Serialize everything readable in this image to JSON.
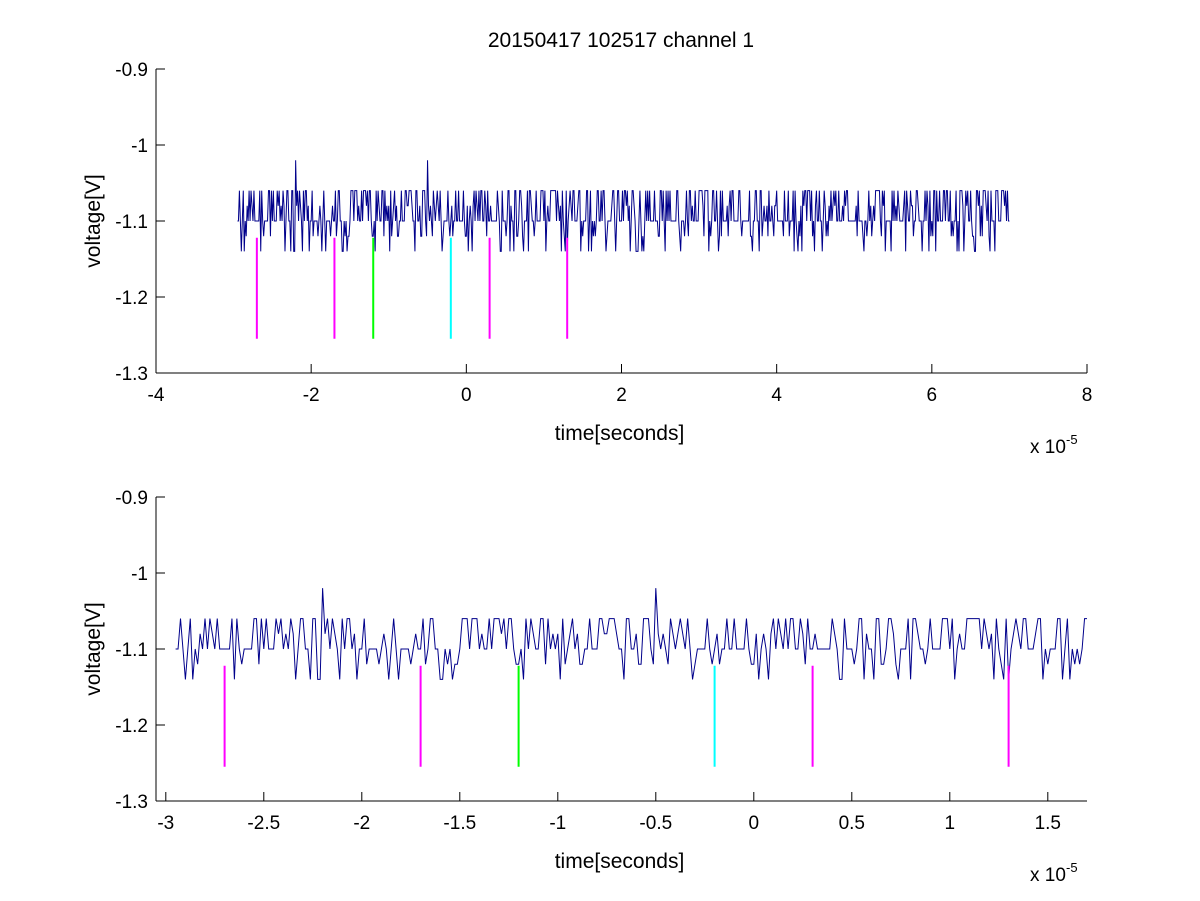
{
  "figure": {
    "title": "20150417 102517 channel 1"
  },
  "chart_data": [
    {
      "type": "line",
      "xlabel": "time[seconds]",
      "ylabel": "voltage[V]",
      "x_multiplier": {
        "base": "x 10",
        "exponent": "-5"
      },
      "xlim": [
        -4,
        8
      ],
      "ylim": [
        -1.3,
        -0.9
      ],
      "xticks": [
        -4,
        -2,
        0,
        2,
        4,
        6,
        8
      ],
      "xtick_labels": [
        "-4",
        "-2",
        "0",
        "2",
        "4",
        "6",
        "8"
      ],
      "yticks": [
        -0.9,
        -1.0,
        -1.1,
        -1.2,
        -1.3
      ],
      "ytick_labels": [
        "-0.9",
        "-1",
        "-1.1",
        "-1.2",
        "-1.3"
      ],
      "grid": false,
      "signal": {
        "color": "#00008B",
        "x_start": -2.95,
        "x_end": 7.0,
        "levels": [
          -1.06,
          -1.08,
          -1.1,
          -1.12,
          -1.14
        ],
        "spikes": [
          {
            "x": -2.2,
            "y": -1.02
          },
          {
            "x": -0.5,
            "y": -1.02
          }
        ]
      },
      "markers": [
        {
          "x": -2.7,
          "color": "#FF00FF"
        },
        {
          "x": -1.7,
          "color": "#FF00FF"
        },
        {
          "x": -1.2,
          "color": "#00FF00"
        },
        {
          "x": -0.2,
          "color": "#00FFFF"
        },
        {
          "x": 0.3,
          "color": "#FF00FF"
        },
        {
          "x": 1.3,
          "color": "#FF00FF"
        }
      ],
      "marker_y_range": [
        -1.255,
        -1.122
      ]
    },
    {
      "type": "line",
      "xlabel": "time[seconds]",
      "ylabel": "voltage[V]",
      "x_multiplier": {
        "base": "x 10",
        "exponent": "-5"
      },
      "xlim": [
        -3.05,
        1.7
      ],
      "ylim": [
        -1.3,
        -0.9
      ],
      "xticks": [
        -3,
        -2.5,
        -2,
        -1.5,
        -1,
        -0.5,
        0,
        0.5,
        1,
        1.5
      ],
      "xtick_labels": [
        "-3",
        "-2.5",
        "-2",
        "-1.5",
        "-1",
        "-0.5",
        "0",
        "0.5",
        "1",
        "1.5"
      ],
      "yticks": [
        -0.9,
        -1.0,
        -1.1,
        -1.2,
        -1.3
      ],
      "ytick_labels": [
        "-0.9",
        "-1",
        "-1.1",
        "-1.2",
        "-1.3"
      ],
      "grid": false,
      "signal": {
        "color": "#00008B",
        "x_start": -2.95,
        "x_end": 1.7,
        "levels": [
          -1.06,
          -1.08,
          -1.1,
          -1.12,
          -1.14
        ],
        "spikes": [
          {
            "x": -2.2,
            "y": -1.02
          },
          {
            "x": -0.5,
            "y": -1.02
          }
        ]
      },
      "markers": [
        {
          "x": -2.7,
          "color": "#FF00FF"
        },
        {
          "x": -1.7,
          "color": "#FF00FF"
        },
        {
          "x": -1.2,
          "color": "#00FF00"
        },
        {
          "x": -0.2,
          "color": "#00FFFF"
        },
        {
          "x": 0.3,
          "color": "#FF00FF"
        },
        {
          "x": 1.3,
          "color": "#FF00FF"
        }
      ],
      "marker_y_range": [
        -1.255,
        -1.122
      ]
    }
  ]
}
